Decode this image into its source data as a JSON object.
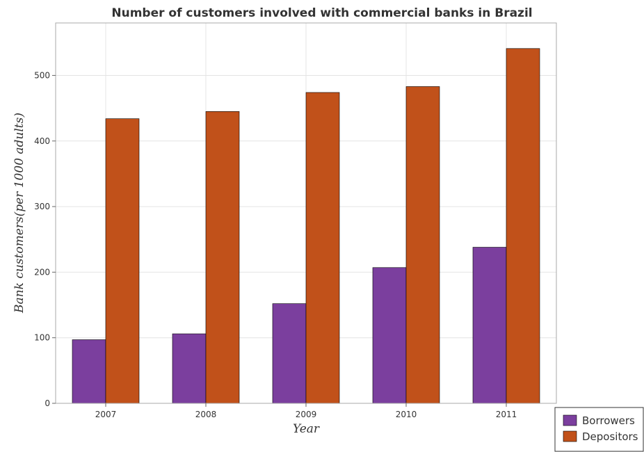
{
  "chart_data": {
    "type": "bar",
    "title": "Number of customers involved with commercial banks in Brazil",
    "xlabel": "Year",
    "ylabel": "Bank customers(per 1000 adults)",
    "categories": [
      "2007",
      "2008",
      "2009",
      "2010",
      "2011"
    ],
    "series": [
      {
        "name": "Borrowers",
        "color": "#7b3f9e",
        "values": [
          97,
          106,
          152,
          207,
          238
        ]
      },
      {
        "name": "Depositors",
        "color": "#c1511a",
        "values": [
          434,
          445,
          474,
          483,
          541
        ]
      }
    ],
    "ylim": [
      0,
      580
    ],
    "yticks": [
      0,
      100,
      200,
      300,
      400,
      500
    ],
    "grid": true,
    "legend_position": "bottom-right"
  }
}
